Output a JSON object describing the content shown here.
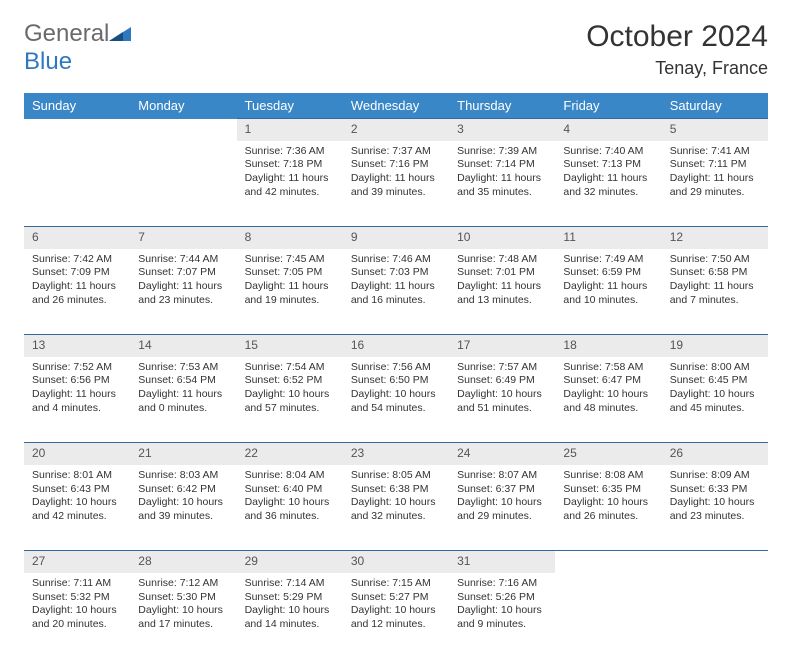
{
  "branding": {
    "logo_text_1": "General",
    "logo_text_2": "Blue",
    "logo_color_1": "#6a6a6a",
    "logo_color_2": "#2f78bf"
  },
  "header": {
    "month_title": "October 2024",
    "location": "Tenay, France"
  },
  "colors": {
    "header_bg": "#3a87c8",
    "header_text": "#ffffff",
    "daynum_bg": "#ebebeb",
    "daynum_border": "#2f6aa0",
    "body_text": "#333333",
    "page_bg": "#ffffff"
  },
  "day_headers": [
    "Sunday",
    "Monday",
    "Tuesday",
    "Wednesday",
    "Thursday",
    "Friday",
    "Saturday"
  ],
  "weeks": [
    {
      "nums": [
        "",
        "",
        "1",
        "2",
        "3",
        "4",
        "5"
      ],
      "cells": [
        {
          "l1": "",
          "l2": "",
          "l3": "",
          "l4": ""
        },
        {
          "l1": "",
          "l2": "",
          "l3": "",
          "l4": ""
        },
        {
          "l1": "Sunrise: 7:36 AM",
          "l2": "Sunset: 7:18 PM",
          "l3": "Daylight: 11 hours",
          "l4": "and 42 minutes."
        },
        {
          "l1": "Sunrise: 7:37 AM",
          "l2": "Sunset: 7:16 PM",
          "l3": "Daylight: 11 hours",
          "l4": "and 39 minutes."
        },
        {
          "l1": "Sunrise: 7:39 AM",
          "l2": "Sunset: 7:14 PM",
          "l3": "Daylight: 11 hours",
          "l4": "and 35 minutes."
        },
        {
          "l1": "Sunrise: 7:40 AM",
          "l2": "Sunset: 7:13 PM",
          "l3": "Daylight: 11 hours",
          "l4": "and 32 minutes."
        },
        {
          "l1": "Sunrise: 7:41 AM",
          "l2": "Sunset: 7:11 PM",
          "l3": "Daylight: 11 hours",
          "l4": "and 29 minutes."
        }
      ]
    },
    {
      "nums": [
        "6",
        "7",
        "8",
        "9",
        "10",
        "11",
        "12"
      ],
      "cells": [
        {
          "l1": "Sunrise: 7:42 AM",
          "l2": "Sunset: 7:09 PM",
          "l3": "Daylight: 11 hours",
          "l4": "and 26 minutes."
        },
        {
          "l1": "Sunrise: 7:44 AM",
          "l2": "Sunset: 7:07 PM",
          "l3": "Daylight: 11 hours",
          "l4": "and 23 minutes."
        },
        {
          "l1": "Sunrise: 7:45 AM",
          "l2": "Sunset: 7:05 PM",
          "l3": "Daylight: 11 hours",
          "l4": "and 19 minutes."
        },
        {
          "l1": "Sunrise: 7:46 AM",
          "l2": "Sunset: 7:03 PM",
          "l3": "Daylight: 11 hours",
          "l4": "and 16 minutes."
        },
        {
          "l1": "Sunrise: 7:48 AM",
          "l2": "Sunset: 7:01 PM",
          "l3": "Daylight: 11 hours",
          "l4": "and 13 minutes."
        },
        {
          "l1": "Sunrise: 7:49 AM",
          "l2": "Sunset: 6:59 PM",
          "l3": "Daylight: 11 hours",
          "l4": "and 10 minutes."
        },
        {
          "l1": "Sunrise: 7:50 AM",
          "l2": "Sunset: 6:58 PM",
          "l3": "Daylight: 11 hours",
          "l4": "and 7 minutes."
        }
      ]
    },
    {
      "nums": [
        "13",
        "14",
        "15",
        "16",
        "17",
        "18",
        "19"
      ],
      "cells": [
        {
          "l1": "Sunrise: 7:52 AM",
          "l2": "Sunset: 6:56 PM",
          "l3": "Daylight: 11 hours",
          "l4": "and 4 minutes."
        },
        {
          "l1": "Sunrise: 7:53 AM",
          "l2": "Sunset: 6:54 PM",
          "l3": "Daylight: 11 hours",
          "l4": "and 0 minutes."
        },
        {
          "l1": "Sunrise: 7:54 AM",
          "l2": "Sunset: 6:52 PM",
          "l3": "Daylight: 10 hours",
          "l4": "and 57 minutes."
        },
        {
          "l1": "Sunrise: 7:56 AM",
          "l2": "Sunset: 6:50 PM",
          "l3": "Daylight: 10 hours",
          "l4": "and 54 minutes."
        },
        {
          "l1": "Sunrise: 7:57 AM",
          "l2": "Sunset: 6:49 PM",
          "l3": "Daylight: 10 hours",
          "l4": "and 51 minutes."
        },
        {
          "l1": "Sunrise: 7:58 AM",
          "l2": "Sunset: 6:47 PM",
          "l3": "Daylight: 10 hours",
          "l4": "and 48 minutes."
        },
        {
          "l1": "Sunrise: 8:00 AM",
          "l2": "Sunset: 6:45 PM",
          "l3": "Daylight: 10 hours",
          "l4": "and 45 minutes."
        }
      ]
    },
    {
      "nums": [
        "20",
        "21",
        "22",
        "23",
        "24",
        "25",
        "26"
      ],
      "cells": [
        {
          "l1": "Sunrise: 8:01 AM",
          "l2": "Sunset: 6:43 PM",
          "l3": "Daylight: 10 hours",
          "l4": "and 42 minutes."
        },
        {
          "l1": "Sunrise: 8:03 AM",
          "l2": "Sunset: 6:42 PM",
          "l3": "Daylight: 10 hours",
          "l4": "and 39 minutes."
        },
        {
          "l1": "Sunrise: 8:04 AM",
          "l2": "Sunset: 6:40 PM",
          "l3": "Daylight: 10 hours",
          "l4": "and 36 minutes."
        },
        {
          "l1": "Sunrise: 8:05 AM",
          "l2": "Sunset: 6:38 PM",
          "l3": "Daylight: 10 hours",
          "l4": "and 32 minutes."
        },
        {
          "l1": "Sunrise: 8:07 AM",
          "l2": "Sunset: 6:37 PM",
          "l3": "Daylight: 10 hours",
          "l4": "and 29 minutes."
        },
        {
          "l1": "Sunrise: 8:08 AM",
          "l2": "Sunset: 6:35 PM",
          "l3": "Daylight: 10 hours",
          "l4": "and 26 minutes."
        },
        {
          "l1": "Sunrise: 8:09 AM",
          "l2": "Sunset: 6:33 PM",
          "l3": "Daylight: 10 hours",
          "l4": "and 23 minutes."
        }
      ]
    },
    {
      "nums": [
        "27",
        "28",
        "29",
        "30",
        "31",
        "",
        ""
      ],
      "cells": [
        {
          "l1": "Sunrise: 7:11 AM",
          "l2": "Sunset: 5:32 PM",
          "l3": "Daylight: 10 hours",
          "l4": "and 20 minutes."
        },
        {
          "l1": "Sunrise: 7:12 AM",
          "l2": "Sunset: 5:30 PM",
          "l3": "Daylight: 10 hours",
          "l4": "and 17 minutes."
        },
        {
          "l1": "Sunrise: 7:14 AM",
          "l2": "Sunset: 5:29 PM",
          "l3": "Daylight: 10 hours",
          "l4": "and 14 minutes."
        },
        {
          "l1": "Sunrise: 7:15 AM",
          "l2": "Sunset: 5:27 PM",
          "l3": "Daylight: 10 hours",
          "l4": "and 12 minutes."
        },
        {
          "l1": "Sunrise: 7:16 AM",
          "l2": "Sunset: 5:26 PM",
          "l3": "Daylight: 10 hours",
          "l4": "and 9 minutes."
        },
        {
          "l1": "",
          "l2": "",
          "l3": "",
          "l4": ""
        },
        {
          "l1": "",
          "l2": "",
          "l3": "",
          "l4": ""
        }
      ]
    }
  ]
}
